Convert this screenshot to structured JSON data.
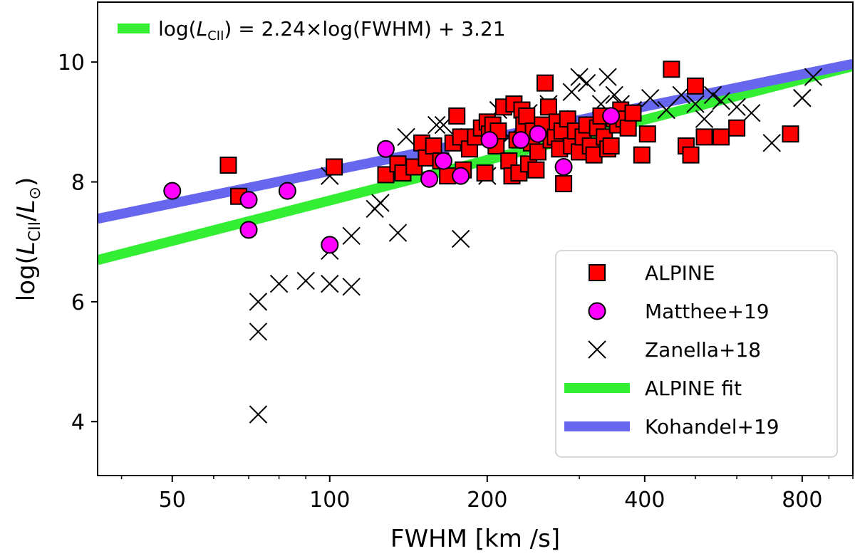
{
  "chart_data": {
    "type": "scatter",
    "title": "",
    "xlabel": "FWHM [km /s]",
    "ylabel": {
      "prefix": "log(",
      "L": "L",
      "sub": "CII",
      "slash": "/",
      "L2": "L",
      "sub2": "⊙",
      "suffix": ")"
    },
    "xscale": "log",
    "xlim": [
      36,
      1000
    ],
    "ylim": [
      3.1,
      11.0
    ],
    "xticks": [
      50,
      100,
      200,
      400,
      800
    ],
    "xtick_labels": [
      "50",
      "100",
      "200",
      "400",
      "800"
    ],
    "yticks": [
      4,
      6,
      8,
      10
    ],
    "ytick_labels": [
      "4",
      "6",
      "8",
      "10"
    ],
    "annotation": {
      "prefix": "log(",
      "L": "L",
      "sub": "CII",
      "suffix": ") = 2.24×log(FWHM) + 3.21",
      "color": "#33ee33",
      "placement": "top-left"
    },
    "legend_placement": "lower-right",
    "series": [
      {
        "name": "ALPINE",
        "marker": "square",
        "color": "#ff0000",
        "edge": "#000000",
        "x": [
          64,
          67,
          102,
          128,
          135,
          138,
          145,
          150,
          153,
          158,
          163,
          168,
          172,
          175,
          178,
          180,
          185,
          190,
          195,
          198,
          200,
          202,
          205,
          208,
          210,
          215,
          220,
          223,
          225,
          228,
          230,
          233,
          235,
          238,
          240,
          243,
          245,
          248,
          250,
          255,
          258,
          262,
          265,
          270,
          272,
          275,
          278,
          280,
          285,
          290,
          295,
          300,
          305,
          310,
          315,
          320,
          325,
          330,
          335,
          340,
          345,
          350,
          355,
          360,
          365,
          372,
          380,
          395,
          405,
          450,
          480,
          490,
          500,
          520,
          560,
          600,
          760
        ],
        "y": [
          8.28,
          7.76,
          8.25,
          8.12,
          8.3,
          8.15,
          8.25,
          8.65,
          8.4,
          8.6,
          8.35,
          8.1,
          8.65,
          9.1,
          8.75,
          8.2,
          8.55,
          8.75,
          8.9,
          8.15,
          9.0,
          8.8,
          8.95,
          8.6,
          8.85,
          9.25,
          8.35,
          8.1,
          9.3,
          8.7,
          8.15,
          9.2,
          8.95,
          9.1,
          8.3,
          8.65,
          8.85,
          8.2,
          8.5,
          8.95,
          9.65,
          9.25,
          8.7,
          8.75,
          9.0,
          8.55,
          8.85,
          7.97,
          9.05,
          8.6,
          8.85,
          8.5,
          8.75,
          8.95,
          8.6,
          8.45,
          8.9,
          9.1,
          8.75,
          8.55,
          8.6,
          9.05,
          8.95,
          9.2,
          9.05,
          8.9,
          9.15,
          8.45,
          8.8,
          9.88,
          8.6,
          8.45,
          9.6,
          8.75,
          8.75,
          8.9,
          8.8
        ]
      },
      {
        "name": "Matthee+19",
        "marker": "circle",
        "color": "#ff00ff",
        "edge": "#000000",
        "x": [
          50,
          70,
          70,
          83,
          100,
          128,
          155,
          165,
          178,
          202,
          232,
          250,
          280,
          345
        ],
        "y": [
          7.85,
          7.7,
          7.2,
          7.85,
          6.95,
          8.55,
          8.05,
          8.35,
          8.1,
          8.7,
          8.7,
          8.8,
          8.25,
          9.1
        ]
      },
      {
        "name": "Zanella+18",
        "marker": "x",
        "color": "#000000",
        "x": [
          73,
          73,
          73,
          80,
          90,
          100,
          100,
          100,
          110,
          110,
          122,
          125,
          135,
          140,
          160,
          165,
          178,
          185,
          200,
          210,
          220,
          240,
          262,
          275,
          290,
          300,
          310,
          320,
          330,
          340,
          350,
          360,
          380,
          410,
          440,
          470,
          500,
          520,
          540,
          560,
          600,
          640,
          700,
          800,
          800,
          840
        ],
        "y": [
          6.0,
          5.5,
          4.12,
          6.3,
          6.35,
          8.1,
          6.85,
          6.3,
          7.1,
          6.25,
          7.55,
          7.65,
          7.15,
          8.75,
          8.95,
          8.95,
          7.05,
          8.75,
          8.1,
          9.2,
          8.75,
          9.15,
          9.3,
          9.05,
          9.5,
          9.75,
          9.65,
          8.95,
          9.3,
          9.75,
          9.45,
          9.3,
          9.2,
          9.4,
          9.2,
          9.45,
          9.3,
          9.05,
          9.45,
          9.35,
          9.25,
          9.15,
          8.65,
          9.4,
          9.4,
          9.75
        ]
      }
    ],
    "lines": [
      {
        "name": "ALPINE fit",
        "color": "#33ee33",
        "slope": 2.24,
        "intercept": 3.21,
        "width": 14
      },
      {
        "name": "Kohandel+19",
        "color": "#6666ee",
        "slope": 1.79,
        "intercept": 4.6,
        "width": 14
      }
    ],
    "legend": [
      {
        "label": "ALPINE",
        "kind": "square",
        "color": "#ff0000"
      },
      {
        "label": "Matthee+19",
        "kind": "circle",
        "color": "#ff00ff"
      },
      {
        "label": "Zanella+18",
        "kind": "x",
        "color": "#000000"
      },
      {
        "label": "ALPINE fit",
        "kind": "line",
        "color": "#33ee33"
      },
      {
        "label": "Kohandel+19",
        "kind": "line",
        "color": "#6666ee"
      }
    ]
  }
}
